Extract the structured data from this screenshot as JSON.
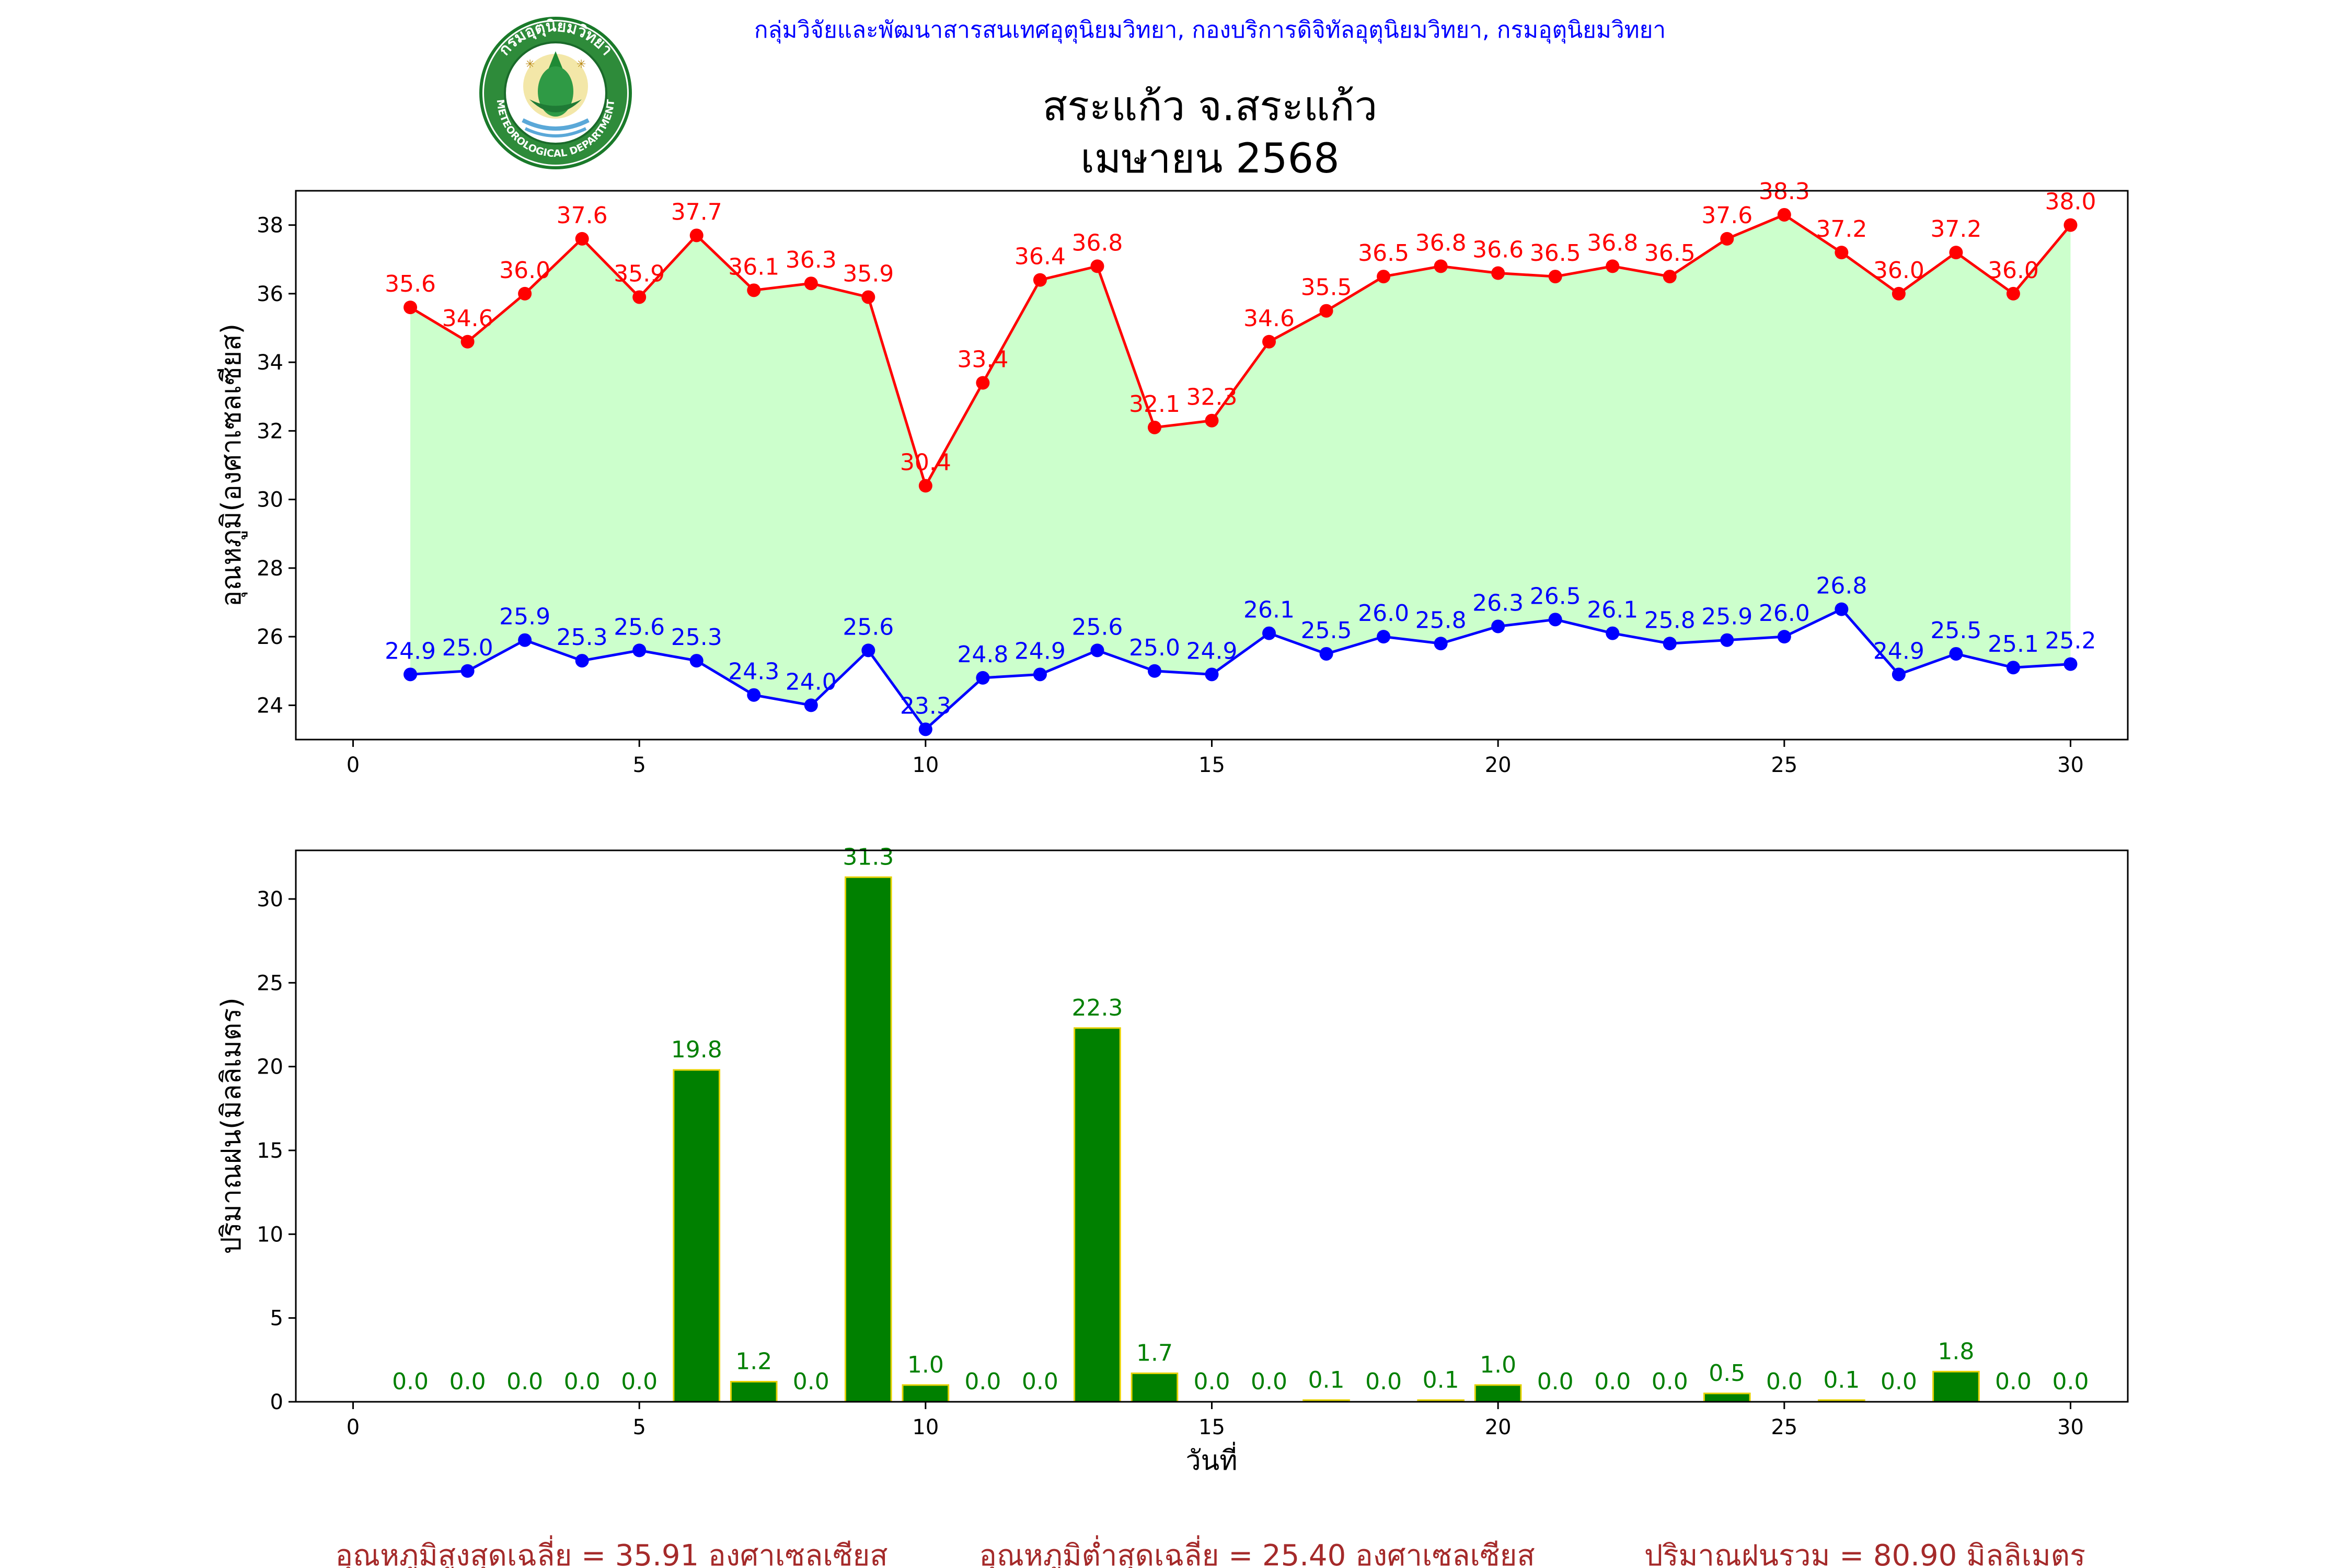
{
  "header": {
    "agency": "กลุ่มวิจัยและพัฒนาสารสนเทศอุตุนิยมวิทยา, กองบริการดิจิทัลอุตุนิยมวิทยา, กรมอุตุนิยมวิทยา",
    "station": "สระแก้ว จ.สระแก้ว",
    "period": "เมษายน 2568",
    "logo": {
      "top_text": "กรมอุตุนิยมวิทยา",
      "bottom_text": "METEOROLOGICAL DEPARTMENT"
    }
  },
  "colors": {
    "agency_text": "#0000ff",
    "max_line": "#ff0000",
    "min_line": "#0000ff",
    "fill": "#ccffcc",
    "bar": "#008000",
    "bar_edge": "#e6d200",
    "bar_label": "#008000",
    "summary_text": "#a52a2a"
  },
  "chart_data": [
    {
      "type": "line",
      "ylabel": "อุณหภูมิ(องศาเซลเซียส)",
      "xlabel": "",
      "xlim": [
        -1,
        31
      ],
      "ylim": [
        23,
        39
      ],
      "xticks": [
        0,
        5,
        10,
        15,
        20,
        25,
        30
      ],
      "yticks": [
        24,
        26,
        28,
        30,
        32,
        34,
        36,
        38
      ],
      "grid": false,
      "fill_between": true,
      "x": [
        1,
        2,
        3,
        4,
        5,
        6,
        7,
        8,
        9,
        10,
        11,
        12,
        13,
        14,
        15,
        16,
        17,
        18,
        19,
        20,
        21,
        22,
        23,
        24,
        25,
        26,
        27,
        28,
        29,
        30
      ],
      "series": [
        {
          "values": [
            35.6,
            34.6,
            36.0,
            37.6,
            35.9,
            37.7,
            36.1,
            36.3,
            35.9,
            30.4,
            33.4,
            36.4,
            36.8,
            32.1,
            32.3,
            34.6,
            35.5,
            36.5,
            36.8,
            36.6,
            36.5,
            36.8,
            36.5,
            37.6,
            38.3,
            37.2,
            36.0,
            37.2,
            36.0,
            38.0
          ]
        },
        {
          "values": [
            24.9,
            25.0,
            25.9,
            25.3,
            25.6,
            25.3,
            24.3,
            24.0,
            25.6,
            23.3,
            24.8,
            24.9,
            25.6,
            25.0,
            24.9,
            26.1,
            25.5,
            26.0,
            25.8,
            26.3,
            26.5,
            26.1,
            25.8,
            25.9,
            26.0,
            26.8,
            24.9,
            25.5,
            25.1,
            25.2
          ]
        }
      ]
    },
    {
      "type": "bar",
      "ylabel": "ปริมาณฝน(มิลลิเมตร)",
      "xlabel": "วันที่",
      "xlim": [
        -1,
        31
      ],
      "ylim": [
        0,
        32.9
      ],
      "xticks": [
        0,
        5,
        10,
        15,
        20,
        25,
        30
      ],
      "yticks": [
        0,
        5,
        10,
        15,
        20,
        25,
        30
      ],
      "grid": false,
      "x": [
        1,
        2,
        3,
        4,
        5,
        6,
        7,
        8,
        9,
        10,
        11,
        12,
        13,
        14,
        15,
        16,
        17,
        18,
        19,
        20,
        21,
        22,
        23,
        24,
        25,
        26,
        27,
        28,
        29,
        30
      ],
      "values": [
        0.0,
        0.0,
        0.0,
        0.0,
        0.0,
        19.8,
        1.2,
        0.0,
        31.3,
        1.0,
        0.0,
        0.0,
        22.3,
        1.7,
        0.0,
        0.0,
        0.1,
        0.0,
        0.1,
        1.0,
        0.0,
        0.0,
        0.0,
        0.5,
        0.0,
        0.1,
        0.0,
        1.8,
        0.0,
        0.0
      ]
    }
  ],
  "summary": {
    "avg_max": "อุณหภูมิสูงสุดเฉลี่ย = 35.91 องศาเซลเซียส",
    "avg_min": "อุณหภูมิต่ำสุดเฉลี่ย = 25.40 องศาเซลเซียส",
    "total_rain": "ปริมาณฝนรวม = 80.90 มิลลิเมตร"
  }
}
